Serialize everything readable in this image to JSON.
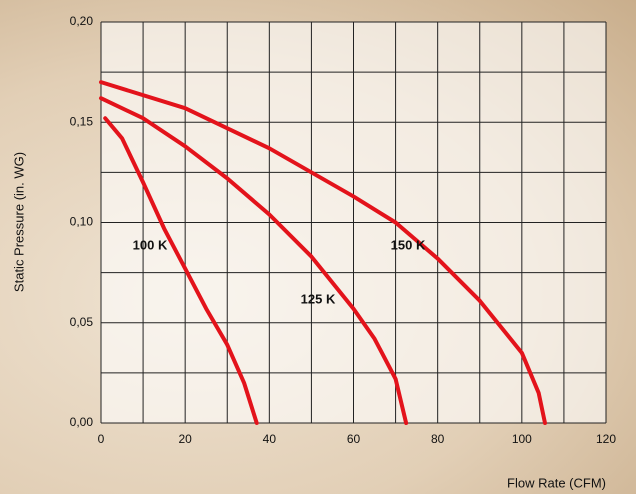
{
  "chart_data": {
    "type": "line",
    "x_label": "Flow Rate (CFM)",
    "y_label": "Static Pressure (in. WG)",
    "xlim": [
      0,
      120
    ],
    "ylim": [
      0,
      0.2
    ],
    "xticks": [
      0,
      20,
      40,
      60,
      80,
      100,
      120
    ],
    "yticks": [
      {
        "value": 0,
        "label": "0,00"
      },
      {
        "value": 0.05,
        "label": "0,05"
      },
      {
        "value": 0.1,
        "label": "0,10"
      },
      {
        "value": 0.15,
        "label": "0,15"
      },
      {
        "value": 0.2,
        "label": "0,20"
      }
    ],
    "xgrid": [
      0,
      10,
      20,
      30,
      40,
      50,
      60,
      70,
      80,
      90,
      100,
      110,
      120
    ],
    "ygrid": [
      0,
      0.025,
      0.05,
      0.075,
      0.1,
      0.125,
      0.15,
      0.175,
      0.2
    ],
    "grid": true,
    "series": [
      {
        "name": "100 K",
        "color": "#e3131b",
        "x": [
          1,
          5,
          10,
          15,
          20,
          25,
          30,
          34,
          37
        ],
        "values": [
          0.152,
          0.142,
          0.12,
          0.097,
          0.077,
          0.057,
          0.039,
          0.02,
          0
        ]
      },
      {
        "name": "125 K",
        "color": "#e3131b",
        "x": [
          0,
          10,
          20,
          30,
          40,
          50,
          60,
          65,
          70,
          72.5
        ],
        "values": [
          0.162,
          0.152,
          0.138,
          0.122,
          0.104,
          0.083,
          0.057,
          0.042,
          0.022,
          0
        ]
      },
      {
        "name": "150 K",
        "color": "#e3131b",
        "x": [
          0,
          20,
          40,
          60,
          70,
          80,
          90,
          100,
          104,
          105.5
        ],
        "values": [
          0.17,
          0.157,
          0.137,
          0.113,
          0.1,
          0.082,
          0.061,
          0.035,
          0.015,
          0
        ]
      }
    ]
  }
}
